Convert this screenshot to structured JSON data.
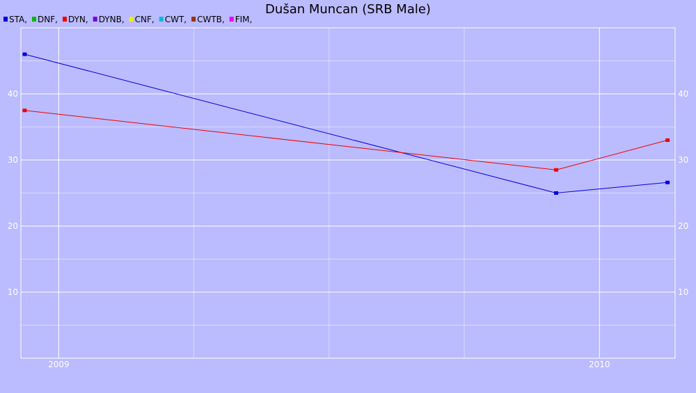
{
  "chart_data": {
    "type": "line",
    "title": "Dušan Muncan (SRB Male)",
    "xlabel": "",
    "ylabel": "",
    "x_ticks": [
      "2009",
      "2010"
    ],
    "xlim": [
      2008.93,
      2010.14
    ],
    "ylim": [
      0,
      50
    ],
    "y_ticks": [
      10,
      20,
      30,
      40
    ],
    "grid": true,
    "legend_position": "top-left",
    "legend": [
      {
        "label": "STA,",
        "color": "#0000dd"
      },
      {
        "label": "DNF,",
        "color": "#00bb00"
      },
      {
        "label": "DYN,",
        "color": "#ee0000"
      },
      {
        "label": "DYNB,",
        "color": "#7700dd"
      },
      {
        "label": "CNF,",
        "color": "#eeee00"
      },
      {
        "label": "CWT,",
        "color": "#00bbdd"
      },
      {
        "label": "CWTB,",
        "color": "#993300"
      },
      {
        "label": "FIM,",
        "color": "#ee00ee"
      }
    ],
    "series": [
      {
        "name": "STA",
        "color": "#0000dd",
        "x": [
          2008.937,
          2009.92,
          2010.126
        ],
        "values": [
          46,
          25,
          26.6
        ]
      },
      {
        "name": "DYN",
        "color": "#ee0000",
        "x": [
          2008.937,
          2009.92,
          2010.126
        ],
        "values": [
          37.5,
          28.5,
          33
        ]
      }
    ]
  },
  "colors": {
    "background": "#bbbbff",
    "grid": "#ffffff",
    "tick_text": "#ffffff"
  }
}
